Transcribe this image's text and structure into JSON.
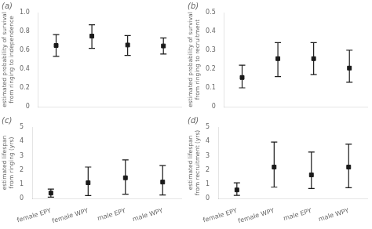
{
  "chart_data": [
    {
      "type": "scatter",
      "title": "(a)",
      "ylabel": "estimated probability of survival\nfrom ringing to independence",
      "categories": [
        "female EPY",
        "female WPY",
        "male EPY",
        "male WPY"
      ],
      "values": [
        0.65,
        0.75,
        0.655,
        0.645
      ],
      "errors_lo": [
        0.115,
        0.13,
        0.11,
        0.085
      ],
      "errors_hi": [
        0.115,
        0.12,
        0.1,
        0.085
      ],
      "ylim": [
        0,
        1.0
      ],
      "yticks": [
        0,
        0.2,
        0.4,
        0.6,
        0.8,
        {
          "value": 1.0,
          "label": "1.0"
        }
      ],
      "color": "#1a1a1a",
      "marker": "square",
      "grid": false,
      "tick_labels": "y"
    },
    {
      "type": "scatter",
      "title": "(b)",
      "ylabel": "estimated probability of survival\nfrom ringing to recruitment",
      "categories": [
        "female EPY",
        "female WPY",
        "male EPY",
        "male WPY"
      ],
      "values": [
        0.155,
        0.255,
        0.255,
        0.205
      ],
      "errors_lo": [
        0.055,
        0.095,
        0.085,
        0.075
      ],
      "errors_hi": [
        0.065,
        0.085,
        0.085,
        0.095
      ],
      "ylim": [
        0,
        0.5
      ],
      "yticks": [
        0,
        0.1,
        0.2,
        0.3,
        0.4,
        0.5
      ],
      "color": "#1a1a1a",
      "marker": "square",
      "grid": false,
      "tick_labels": "y"
    },
    {
      "type": "scatter",
      "title": "(c)",
      "ylabel": "estimated lifespan\nfrom ringing (yrs)",
      "categories": [
        "female EPY",
        "female WPY",
        "male EPY",
        "male WPY"
      ],
      "values": [
        0.38,
        1.1,
        1.45,
        1.15
      ],
      "errors_lo": [
        0.28,
        0.9,
        1.15,
        0.9
      ],
      "errors_hi": [
        0.28,
        1.1,
        1.25,
        1.15
      ],
      "ylim": [
        0,
        5
      ],
      "yticks": [
        0,
        1,
        2,
        3,
        4,
        5
      ],
      "color": "#1a1a1a",
      "marker": "square",
      "grid": false
    },
    {
      "type": "scatter",
      "title": "(d)",
      "ylabel": "estimated lifespan\nfrom recruitment (yrs)",
      "categories": [
        "female EPY",
        "female WPY",
        "male EPY",
        "male WPY"
      ],
      "values": [
        0.6,
        2.2,
        1.65,
        2.2
      ],
      "errors_lo": [
        0.38,
        1.4,
        0.95,
        1.45
      ],
      "errors_hi": [
        0.5,
        1.75,
        1.6,
        1.6
      ],
      "ylim": [
        0,
        5
      ],
      "yticks": [
        0,
        1,
        2,
        3,
        4,
        5
      ],
      "color": "#1a1a1a",
      "marker": "square",
      "grid": false
    }
  ]
}
